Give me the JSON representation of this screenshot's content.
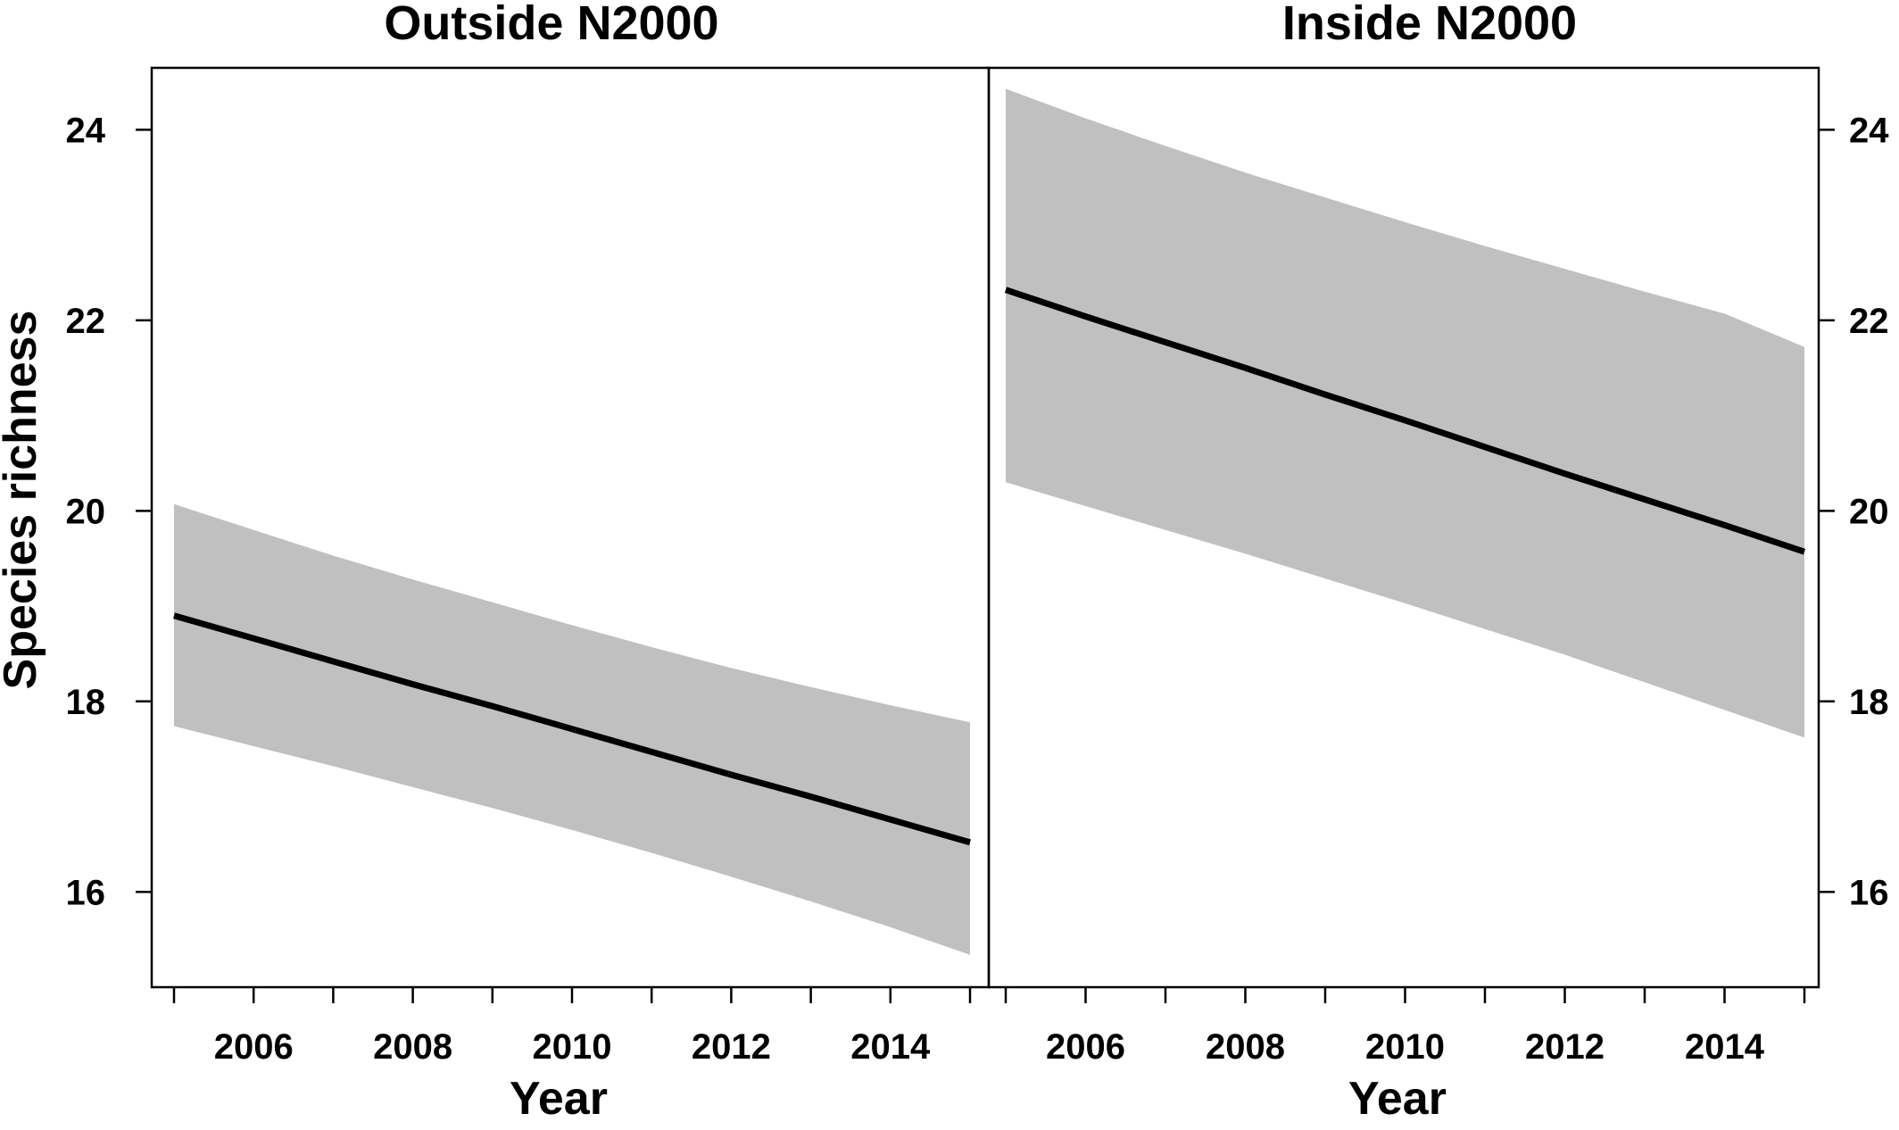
{
  "chart_data": {
    "type": "line",
    "ylabel": "Species richness",
    "ylim": [
      15.0,
      24.65
    ],
    "yticks": [
      16,
      18,
      20,
      22,
      24
    ],
    "xlim": [
      2004.75,
      2015.25
    ],
    "xticks_minor": [
      2005,
      2006,
      2007,
      2008,
      2009,
      2010,
      2011,
      2012,
      2013,
      2014,
      2015
    ],
    "xtick_labels": [
      2006,
      2008,
      2010,
      2012,
      2014
    ],
    "panels": [
      {
        "title": "Outside N2000",
        "xlabel": "Year",
        "x": [
          2005,
          2006,
          2007,
          2008,
          2009,
          2010,
          2011,
          2012,
          2013,
          2014,
          2015
        ],
        "fit": [
          18.9,
          18.66,
          18.42,
          18.18,
          17.95,
          17.71,
          17.47,
          17.23,
          17.0,
          16.76,
          16.52
        ],
        "lower": [
          17.74,
          17.53,
          17.32,
          17.1,
          16.88,
          16.65,
          16.41,
          16.16,
          15.9,
          15.63,
          15.34
        ],
        "upper": [
          20.07,
          19.8,
          19.53,
          19.28,
          19.04,
          18.8,
          18.57,
          18.35,
          18.15,
          17.96,
          17.78
        ]
      },
      {
        "title": "Inside N2000",
        "xlabel": "Year",
        "x": [
          2005,
          2006,
          2007,
          2008,
          2009,
          2010,
          2011,
          2012,
          2013,
          2014,
          2015
        ],
        "fit": [
          22.32,
          22.04,
          21.77,
          21.5,
          21.22,
          20.95,
          20.67,
          20.39,
          20.12,
          19.85,
          19.57
        ],
        "lower": [
          20.3,
          20.05,
          19.8,
          19.55,
          19.29,
          19.03,
          18.76,
          18.49,
          18.2,
          17.91,
          17.62
        ],
        "upper": [
          24.43,
          24.12,
          23.83,
          23.55,
          23.29,
          23.03,
          22.78,
          22.54,
          22.3,
          22.07,
          21.72
        ]
      }
    ]
  }
}
